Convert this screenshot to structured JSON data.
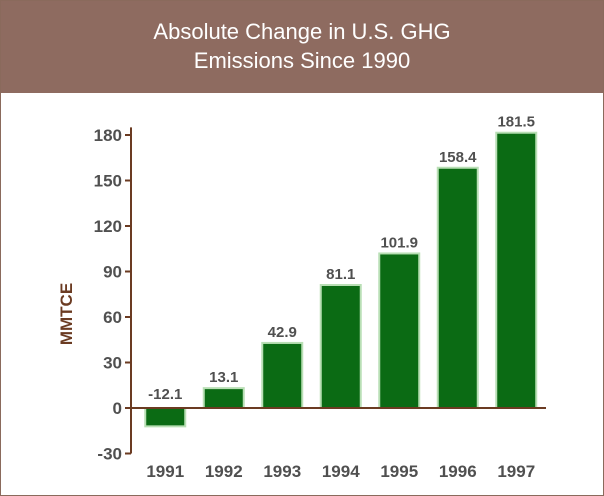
{
  "header": {
    "title_line1": "Absolute Change in U.S. GHG",
    "title_line2": "Emissions Since 1990"
  },
  "colors": {
    "header_bg": "#8e6b60",
    "bar_fill": "#0b6b14",
    "bar_edge": "#b9dfb5",
    "axis": "#6b3b22"
  },
  "chart_data": {
    "type": "bar",
    "title": "Absolute Change in U.S. GHG Emissions Since 1990",
    "xlabel": "",
    "ylabel": "MMTCE",
    "categories": [
      "1991",
      "1992",
      "1993",
      "1994",
      "1995",
      "1996",
      "1997"
    ],
    "values": [
      -12.1,
      13.1,
      42.9,
      81.1,
      101.9,
      158.4,
      181.5
    ],
    "value_labels": [
      "-12.1",
      "13.1",
      "42.9",
      "81.1",
      "101.9",
      "158.4",
      "181.5"
    ],
    "yticks": [
      -30,
      0,
      30,
      60,
      90,
      120,
      150,
      180
    ],
    "ylim": [
      -30,
      185
    ],
    "grid": false,
    "legend": "none"
  }
}
